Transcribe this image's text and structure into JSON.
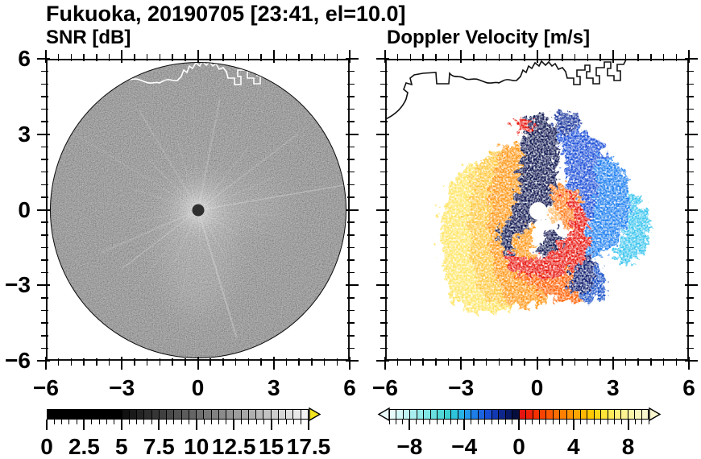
{
  "figure": {
    "title": "Fukuoka, 20190705 [23:41, el=10.0]",
    "site": "Fukuoka",
    "date": "20190705",
    "time": "23:41",
    "elevation": "10.0"
  },
  "panels": {
    "left": {
      "subtitle": "SNR [dB]",
      "x_tick_labels": [
        "−6",
        "−3",
        "0",
        "3",
        "6"
      ],
      "y_tick_labels": [
        "6",
        "3",
        "0",
        "−3",
        "−6"
      ]
    },
    "right": {
      "subtitle": "Doppler Velocity [m/s]",
      "x_tick_labels": [
        "−6",
        "−3",
        "0",
        "3",
        "6"
      ]
    }
  },
  "chart_data": [
    {
      "type": "heatmap",
      "panel": "left",
      "variable": "SNR",
      "units": "dB",
      "x_ticks": [
        -6,
        -3,
        0,
        3,
        6
      ],
      "y_ticks": [
        6,
        3,
        0,
        -3,
        -6
      ],
      "x_range": [
        -6,
        6
      ],
      "y_range": [
        -6,
        6
      ],
      "pattern": "Full circular PPI disk: bright white core (~18 dB) at radar center with thin radial streaks, decaying to near-black (~0 dB) at the 6-unit edge; small dark dot at origin; speckled grayscale noise texture; white coastline drawn across the top of the disk",
      "colorbar": {
        "min": 0,
        "max": 17.5,
        "step": 0.5,
        "label_values": [
          0,
          2.5,
          5,
          7.5,
          10,
          12.5,
          15,
          17.5
        ],
        "tick_labels": [
          "0",
          "2.5",
          "5",
          "7.5",
          "10",
          "12.5",
          "15",
          "17.5"
        ],
        "over_arrow_color": "#f2e41e",
        "segment_colors": [
          "#000000",
          "#000000",
          "#000000",
          "#000000",
          "#000000",
          "#000000",
          "#000000",
          "#000000",
          "#000000",
          "#000000",
          "#111111",
          "#1a1a1a",
          "#242424",
          "#2d2d2d",
          "#363636",
          "#404040",
          "#494949",
          "#525252",
          "#5c5c5c",
          "#656565",
          "#6f6f6f",
          "#787878",
          "#818181",
          "#8b8b8b",
          "#949494",
          "#9d9d9d",
          "#a7a7a7",
          "#b0b0b0",
          "#bababa",
          "#c3c3c3",
          "#cccccc",
          "#d6d6d6",
          "#dfdfdf",
          "#e8e8e8",
          "#f2f2f2"
        ]
      }
    },
    {
      "type": "heatmap",
      "panel": "right",
      "variable": "Doppler Velocity",
      "units": "m/s",
      "x_ticks": [
        -6,
        -3,
        0,
        3,
        6
      ],
      "y_ticks": [
        6,
        3,
        0,
        -3,
        -6
      ],
      "x_range": [
        -6,
        6
      ],
      "y_range": [
        -6,
        6
      ],
      "pattern": "Speckled rotation couplet about 4 units wide centered on the radar: receding flow (red/orange/yellow, +2 to +9 m/s) on the west and south sides, approaching flow (blue/cyan, −2 to −9 m/s) on the east and north, dark-navy band spiraling through the middle, bright-red arm wrapping under the white data-void eye at the origin; black coastline across the top",
      "colorbar": {
        "min": -9.5,
        "max": 9.5,
        "step": 0.5,
        "label_values": [
          -8,
          -4,
          0,
          4,
          8
        ],
        "tick_labels": [
          "−8",
          "−4",
          "0",
          "4",
          "8"
        ],
        "under_arrow_color": "#e9fcfb",
        "over_arrow_color": "#faf6cf",
        "segment_colors": [
          "#e8fbfb",
          "#d4f7f7",
          "#bff3f3",
          "#aaefef",
          "#95eaea",
          "#7fe5e5",
          "#69dfdf",
          "#53d8d8",
          "#3ed0d0",
          "#2ec4dc",
          "#28b2e6",
          "#2398ea",
          "#1e7ee8",
          "#1b64e0",
          "#174cd4",
          "#1338b4",
          "#0e268c",
          "#091864",
          "#050e3c",
          "#e61410",
          "#ee2008",
          "#f63000",
          "#fb4300",
          "#ff5800",
          "#ff6c00",
          "#ff8000",
          "#ff9300",
          "#ffa600",
          "#ffb800",
          "#ffc900",
          "#ffd818",
          "#ffe338",
          "#ffeb58",
          "#fff078",
          "#fdf392",
          "#fbf5a8",
          "#f9f6bc",
          "#f8f6cc"
        ]
      }
    }
  ]
}
